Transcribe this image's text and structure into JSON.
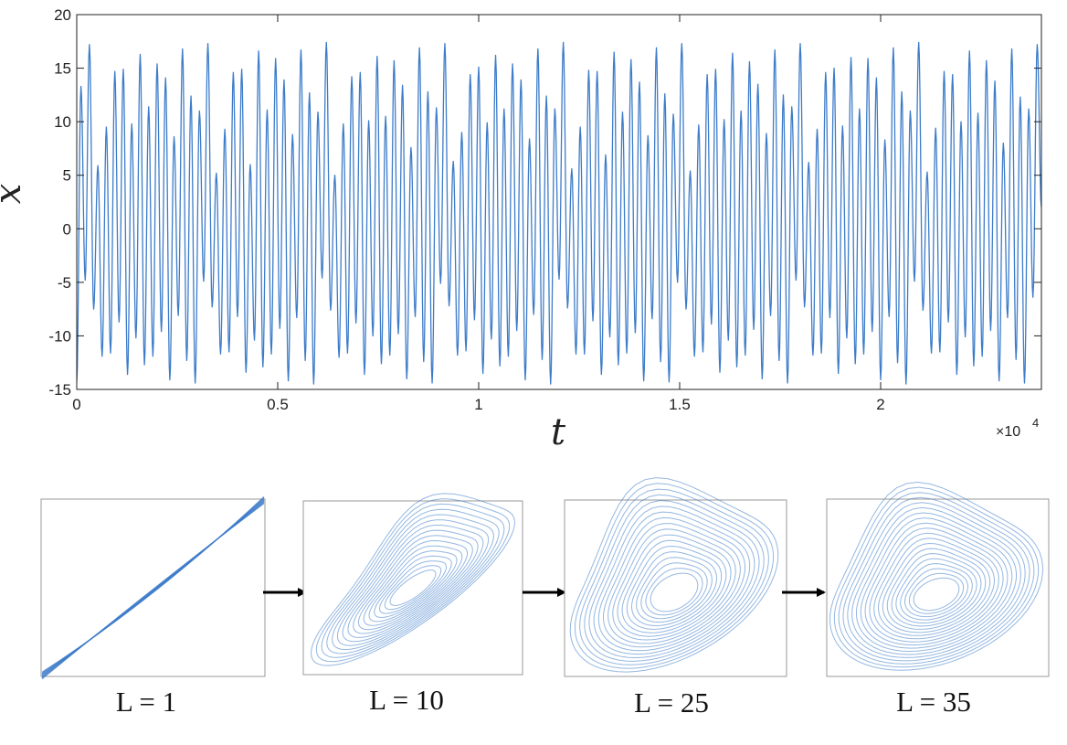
{
  "chart_data": [
    {
      "type": "line",
      "title": "",
      "xlabel": "t",
      "ylabel": "x",
      "x_multiplier_label": "×10",
      "x_multiplier_exponent": "4",
      "xlim": [
        0,
        2.4
      ],
      "ylim": [
        -15,
        20
      ],
      "xticks": [
        0,
        0.5,
        1,
        1.5,
        2
      ],
      "xtick_labels": [
        "0",
        "0.5",
        "1",
        "1.5",
        "2"
      ],
      "yticks": [
        -15,
        -10,
        -5,
        0,
        5,
        10,
        15,
        20
      ],
      "ytick_labels": [
        "-15",
        "-10",
        "-5",
        "0",
        "5",
        "10",
        "15",
        "20"
      ],
      "grid": false,
      "line_color": "#3d7cc9",
      "series": [
        {
          "peaks_max": [
            13.3,
            17.2,
            5.9,
            9.5,
            14.7,
            14.9,
            9.8,
            16.3,
            11.4,
            15.4,
            14.1,
            8.6,
            16.8,
            12.4,
            11.0,
            17.3,
            5.2,
            9.3,
            14.6,
            14.9,
            6.0,
            16.6,
            11.1,
            15.9,
            13.9,
            8.8,
            16.7,
            12.7,
            10.9,
            17.4,
            5.0,
            9.8,
            14.2,
            14.6,
            10.1,
            16.1,
            10.5,
            15.7,
            13.4,
            7.6,
            16.9,
            12.8,
            11.3,
            17.3,
            6.3,
            9.0,
            14.4,
            15.1,
            9.9,
            16.2,
            11.2,
            15.4,
            13.9,
            8.4,
            16.8,
            12.4,
            11.2,
            17.4,
            5.6,
            9.5,
            14.8,
            14.7,
            6.9,
            16.5,
            10.9,
            15.8,
            13.7,
            8.7,
            16.9,
            12.6,
            10.7,
            17.3,
            5.4,
            9.7,
            14.4,
            14.9,
            10.2,
            16.4,
            11.0,
            15.6,
            13.5,
            8.9,
            16.7,
            12.5,
            11.4,
            17.3,
            6.2,
            9.3,
            14.6,
            15.0,
            9.6,
            16.0,
            11.2,
            15.9,
            14.1,
            8.3,
            16.9,
            12.8,
            11.0,
            17.4,
            5.3,
            9.4,
            14.7,
            14.4,
            10.0,
            16.6,
            10.8,
            15.7,
            13.8,
            8.0,
            16.8,
            12.3,
            11.2,
            17.2
          ],
          "troughs_min": [
            -14.3,
            -4.8,
            -7.5,
            -11.9,
            -11.6,
            -8.7,
            -13.6,
            -10.2,
            -12.7,
            -11.9,
            -9.6,
            -14.1,
            -8.1,
            -12.3,
            -14.4,
            -4.9,
            -7.3,
            -11.7,
            -11.5,
            -8.2,
            -13.4,
            -10.4,
            -12.9,
            -11.7,
            -9.3,
            -14.2,
            -8.3,
            -12.3,
            -14.5,
            -4.6,
            -7.6,
            -12.0,
            -11.6,
            -8.8,
            -13.6,
            -10.0,
            -12.6,
            -11.8,
            -9.8,
            -14.0,
            -8.2,
            -12.4,
            -14.4,
            -5.1,
            -7.2,
            -11.8,
            -11.4,
            -8.5,
            -13.5,
            -10.3,
            -12.8,
            -11.9,
            -9.5,
            -14.1,
            -8.0,
            -12.2,
            -14.5,
            -4.7,
            -7.4,
            -11.7,
            -11.7,
            -8.6,
            -13.6,
            -10.1,
            -12.7,
            -11.6,
            -9.7,
            -14.2,
            -8.4,
            -12.4,
            -14.3,
            -5.0,
            -7.5,
            -11.9,
            -11.5,
            -8.9,
            -13.4,
            -10.4,
            -12.9,
            -11.8,
            -9.4,
            -14.0,
            -8.1,
            -12.3,
            -14.4,
            -4.8,
            -7.3,
            -11.8,
            -11.6,
            -8.3,
            -13.5,
            -10.2,
            -12.6,
            -11.7,
            -9.6,
            -14.1,
            -8.2,
            -12.5,
            -14.5,
            -4.9,
            -7.6,
            -11.6,
            -11.5,
            -8.7,
            -13.6,
            -10.1,
            -12.8,
            -11.9,
            -9.5,
            -14.2,
            -8.3,
            -12.2,
            -14.4,
            -6.4
          ]
        }
      ]
    },
    {
      "type": "scatter",
      "panels": [
        {
          "label": "L = 1"
        },
        {
          "label": "L = 10"
        },
        {
          "label": "L = 25"
        },
        {
          "label": "L = 35"
        }
      ]
    }
  ],
  "colors": {
    "series": "#3d7cc9",
    "axis": "#222222",
    "arrow": "#000000",
    "frame": "#9a9a9a"
  }
}
